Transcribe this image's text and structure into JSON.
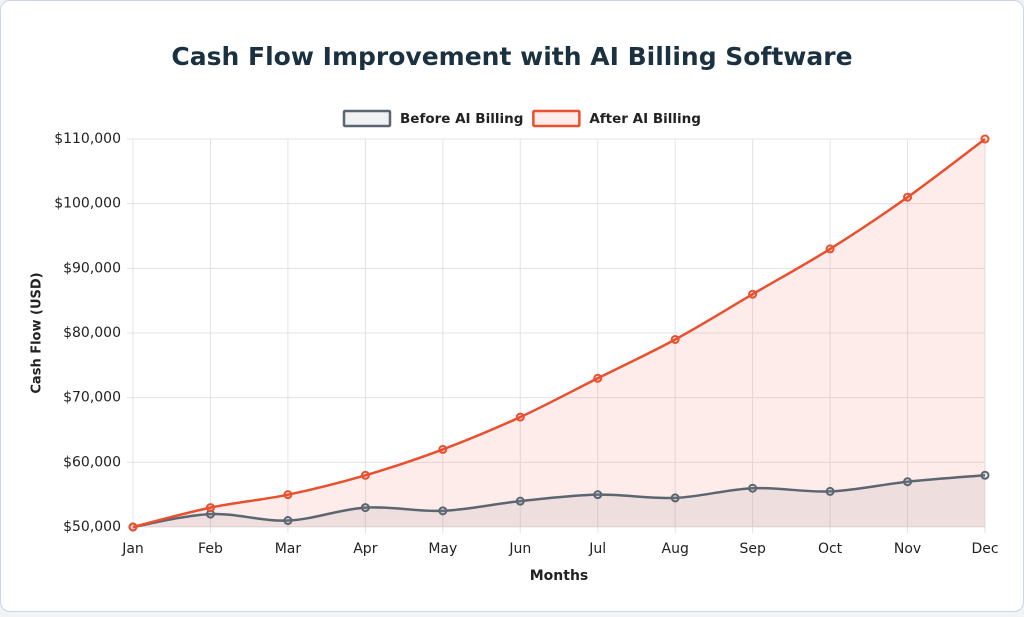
{
  "chart_data": {
    "type": "line",
    "title": "Cash Flow Improvement with AI Billing Software",
    "x_label": "Months",
    "y_label": "Cash Flow (USD)",
    "categories": [
      "Jan",
      "Feb",
      "Mar",
      "Apr",
      "May",
      "Jun",
      "Jul",
      "Aug",
      "Sep",
      "Oct",
      "Nov",
      "Dec"
    ],
    "series": [
      {
        "name": "Before AI Billing",
        "color": "#5b6670",
        "fill": "rgba(150,160,165,0.15)",
        "values": [
          50000,
          52000,
          51000,
          53000,
          52500,
          54000,
          55000,
          54500,
          56000,
          55500,
          57000,
          58000
        ]
      },
      {
        "name": "After AI Billing",
        "color": "#e8502f",
        "fill": "rgba(240,80,60,0.11)",
        "values": [
          50000,
          53000,
          55000,
          58000,
          62000,
          67000,
          73000,
          79000,
          86000,
          93000,
          101000,
          110000
        ]
      }
    ],
    "ylim": [
      50000,
      110000
    ],
    "yticks": [
      {
        "value": 50000,
        "label": "$50,000"
      },
      {
        "value": 60000,
        "label": "$60,000"
      },
      {
        "value": 70000,
        "label": "$70,000"
      },
      {
        "value": 80000,
        "label": "$80,000"
      },
      {
        "value": 90000,
        "label": "$90,000"
      },
      {
        "value": 100000,
        "label": "$100,000"
      },
      {
        "value": 110000,
        "label": "$110,000"
      }
    ],
    "grid": true,
    "legend": "top"
  }
}
